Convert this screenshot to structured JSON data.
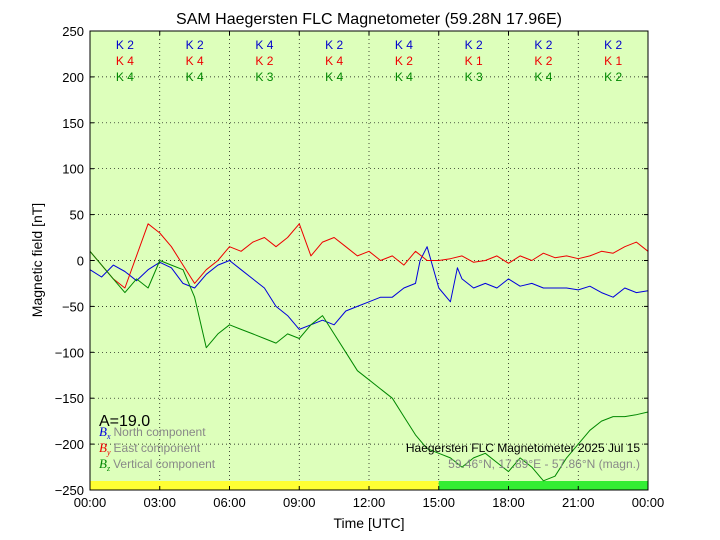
{
  "chart_data": {
    "type": "line",
    "title": "SAM Haegersten FLC Magnetometer (59.28N 17.96E)",
    "xlabel": "Time [UTC]",
    "ylabel": "Magnetic field [nT]",
    "xlim": [
      0,
      24
    ],
    "ylim": [
      -250,
      250
    ],
    "x_ticks": [
      {
        "v": 0,
        "label": "00:00"
      },
      {
        "v": 3,
        "label": "03:00"
      },
      {
        "v": 6,
        "label": "06:00"
      },
      {
        "v": 9,
        "label": "09:00"
      },
      {
        "v": 12,
        "label": "12:00"
      },
      {
        "v": 15,
        "label": "15:00"
      },
      {
        "v": 18,
        "label": "18:00"
      },
      {
        "v": 21,
        "label": "21:00"
      },
      {
        "v": 24,
        "label": "00:00"
      }
    ],
    "y_ticks": [
      {
        "v": -250,
        "label": "−250"
      },
      {
        "v": -200,
        "label": "−200"
      },
      {
        "v": -150,
        "label": "−150"
      },
      {
        "v": -100,
        "label": "−100"
      },
      {
        "v": -50,
        "label": "−50"
      },
      {
        "v": 0,
        "label": "0"
      },
      {
        "v": 50,
        "label": "50"
      },
      {
        "v": 100,
        "label": "100"
      },
      {
        "v": 150,
        "label": "150"
      },
      {
        "v": 200,
        "label": "200"
      },
      {
        "v": 250,
        "label": "250"
      }
    ],
    "grid": true,
    "background": "#ddffbb",
    "k_index_rows": [
      {
        "color": "#0000cc",
        "labels": [
          "K 2",
          "K 2",
          "K 4",
          "K 2",
          "K 4",
          "K 2",
          "K 2",
          "K 2"
        ]
      },
      {
        "color": "#ee0000",
        "labels": [
          "K 4",
          "K 4",
          "K 2",
          "K 4",
          "K 2",
          "K 1",
          "K 2",
          "K 1"
        ]
      },
      {
        "color": "#008800",
        "labels": [
          "K 4",
          "K 4",
          "K 3",
          "K 4",
          "K 4",
          "K 3",
          "K 4",
          "K 2"
        ]
      }
    ],
    "a_index": "A=19.0",
    "station_text": "Haegersten FLC Magnetometer 2025 Jul 15",
    "coords_text": "59.46°N, 17.89°E - 57.86°N (magn.)",
    "day_bar": [
      {
        "from": 0,
        "to": 15,
        "color": "#ffff33"
      },
      {
        "from": 15,
        "to": 24,
        "color": "#33ee33"
      }
    ],
    "legend": [
      {
        "sym": "B",
        "sub": "x",
        "text": "North component",
        "color": "#0000dd"
      },
      {
        "sym": "B",
        "sub": "y",
        "text": "East component",
        "color": "#ee0000"
      },
      {
        "sym": "B",
        "sub": "z",
        "text": "Vertical component",
        "color": "#008800"
      }
    ],
    "series": [
      {
        "name": "North component",
        "color": "#0000dd",
        "x": [
          0,
          0.5,
          1,
          1.5,
          2,
          2.5,
          3,
          3.5,
          4,
          4.5,
          5,
          5.5,
          6,
          6.5,
          7,
          7.5,
          8,
          8.5,
          9,
          9.5,
          10,
          10.5,
          11,
          11.5,
          12,
          12.5,
          13,
          13.5,
          14,
          14.2,
          14.5,
          15,
          15.5,
          15.8,
          16,
          16.5,
          17,
          17.5,
          18,
          18.5,
          19,
          19.5,
          20,
          20.5,
          21,
          21.5,
          22,
          22.5,
          23,
          23.5,
          24
        ],
        "y": [
          -10,
          -18,
          -5,
          -12,
          -22,
          -10,
          -2,
          -8,
          -25,
          -30,
          -15,
          -5,
          0,
          -10,
          -20,
          -30,
          -50,
          -60,
          -75,
          -70,
          -65,
          -70,
          -55,
          -50,
          -45,
          -40,
          -40,
          -30,
          -25,
          0,
          15,
          -30,
          -45,
          -8,
          -20,
          -30,
          -25,
          -30,
          -20,
          -28,
          -25,
          -30,
          -30,
          -30,
          -32,
          -28,
          -35,
          -40,
          -30,
          -35,
          -33
        ]
      },
      {
        "name": "East component",
        "color": "#ee0000",
        "x": [
          0,
          0.5,
          1,
          1.5,
          2,
          2.5,
          3,
          3.5,
          4,
          4.5,
          5,
          5.5,
          6,
          6.5,
          7,
          7.5,
          8,
          8.5,
          9,
          9.5,
          10,
          10.5,
          11,
          11.5,
          12,
          12.5,
          13,
          13.5,
          14,
          14.5,
          15,
          15.5,
          16,
          16.5,
          17,
          17.5,
          18,
          18.5,
          19,
          19.5,
          20,
          20.5,
          21,
          21.5,
          22,
          22.5,
          23,
          23.5,
          24
        ],
        "y": [
          10,
          -5,
          -20,
          -30,
          5,
          40,
          30,
          15,
          -5,
          -25,
          -10,
          0,
          15,
          10,
          20,
          25,
          15,
          25,
          40,
          5,
          20,
          25,
          15,
          5,
          10,
          0,
          5,
          -5,
          10,
          0,
          0,
          2,
          5,
          -2,
          0,
          5,
          -3,
          5,
          0,
          8,
          3,
          5,
          2,
          5,
          10,
          8,
          15,
          20,
          10
        ]
      },
      {
        "name": "Vertical component",
        "color": "#008800",
        "x": [
          0,
          0.5,
          1,
          1.5,
          2,
          2.5,
          3,
          3.5,
          4,
          4.5,
          5,
          5.5,
          6,
          6.5,
          7,
          7.5,
          8,
          8.5,
          9,
          9.5,
          10,
          10.5,
          11,
          11.5,
          12,
          12.5,
          13,
          13.5,
          14,
          14.5,
          15,
          15.5,
          16,
          16.5,
          17,
          17.5,
          18,
          18.5,
          19,
          19.5,
          20,
          20.5,
          21,
          21.5,
          22,
          22.5,
          23,
          23.5,
          24
        ],
        "y": [
          10,
          -5,
          -20,
          -35,
          -20,
          -30,
          0,
          -5,
          -10,
          -40,
          -95,
          -80,
          -70,
          -75,
          -80,
          -85,
          -90,
          -80,
          -85,
          -70,
          -60,
          -80,
          -100,
          -120,
          -130,
          -140,
          -150,
          -170,
          -190,
          -205,
          -210,
          -215,
          -225,
          -215,
          -210,
          -220,
          -230,
          -215,
          -225,
          -240,
          -235,
          -215,
          -200,
          -185,
          -175,
          -170,
          -170,
          -168,
          -165
        ]
      }
    ]
  }
}
